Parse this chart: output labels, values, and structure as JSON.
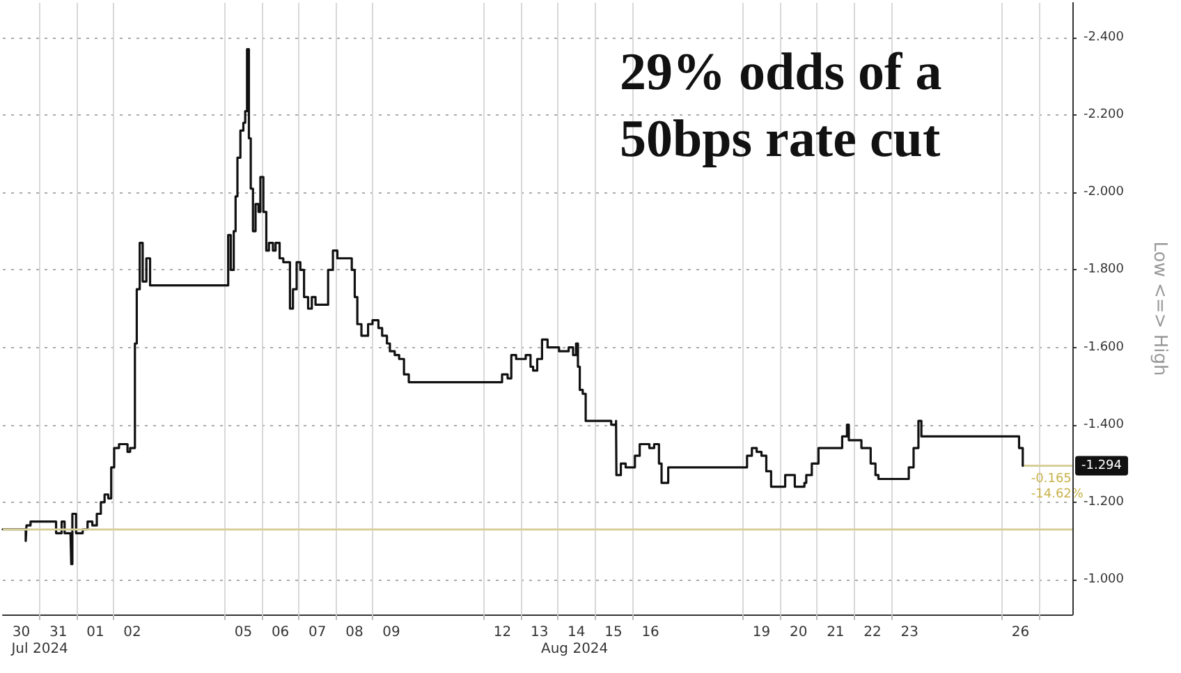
{
  "chart_data": {
    "type": "step",
    "title": "29% odds of a 50bps rate cut",
    "ylabel": "Low <=> High",
    "x": [
      "2024-07-30T00:00",
      "2024-07-30T14:10",
      "2024-07-30T14:53",
      "2024-07-30T15:22",
      "2024-07-30T18:00",
      "2024-07-31T08:10",
      "2024-07-31T10:34",
      "2024-07-31T14:10",
      "2024-07-31T16:05",
      "2024-07-31T19:55",
      "2024-07-31T20:24",
      "2024-07-31T21:07",
      "2024-07-31T23:31",
      "2024-08-01T03:50",
      "2024-08-01T06:58",
      "2024-08-01T10:05",
      "2024-08-01T12:58",
      "2024-08-01T15:36",
      "2024-08-01T18:00",
      "2024-08-01T20:24",
      "2024-08-01T22:19",
      "2024-08-02T00:14",
      "2024-08-02T03:22",
      "2024-08-02T06:14",
      "2024-08-02T08:53",
      "2024-08-02T10:34",
      "2024-08-02T12:29",
      "2024-08-02T13:41",
      "2024-08-02T14:53",
      "2024-08-02T16:48",
      "2024-08-02T18:43",
      "2024-08-02T21:07",
      "2024-08-02T23:31",
      "2024-08-05T02:10",
      "2024-08-05T03:50",
      "2024-08-05T05:46",
      "2024-08-05T06:58",
      "2024-08-05T08:10",
      "2024-08-05T10:05",
      "2024-08-05T12:00",
      "2024-08-05T13:12",
      "2024-08-05T14:24",
      "2024-08-05T15:36",
      "2024-08-05T16:48",
      "2024-08-05T18:14",
      "2024-08-05T19:55",
      "2024-08-05T21:50",
      "2024-08-05T23:02",
      "2024-08-06T00:58",
      "2024-08-06T02:53",
      "2024-08-06T04:34",
      "2024-08-06T07:12",
      "2024-08-06T08:53",
      "2024-08-06T11:31",
      "2024-08-06T13:55",
      "2024-08-06T16:19",
      "2024-08-06T18:14",
      "2024-08-06T20:10",
      "2024-08-06T22:34",
      "2024-08-07T00:58",
      "2024-08-07T03:22",
      "2024-08-07T06:00",
      "2024-08-07T08:24",
      "2024-08-07T10:48",
      "2024-08-07T14:38",
      "2024-08-07T17:02",
      "2024-08-07T18:58",
      "2024-08-07T22:05",
      "2024-08-08T00:58",
      "2024-08-08T04:05",
      "2024-08-08T07:12",
      "2024-08-08T10:19",
      "2024-08-08T12:14",
      "2024-08-08T13:55",
      "2024-08-08T16:34",
      "2024-08-08T18:58",
      "2024-08-08T20:53",
      "2024-08-08T23:46",
      "2024-08-09T03:36",
      "2024-08-09T06:00",
      "2024-08-09T09:07",
      "2024-08-09T11:02",
      "2024-08-09T14:10",
      "2024-08-09T17:02",
      "2024-08-09T20:10",
      "2024-08-09T23:17",
      "2024-08-12T05:31",
      "2024-08-12T11:46",
      "2024-08-12T15:22",
      "2024-08-12T17:46",
      "2024-08-12T20:53",
      "2024-08-13T00:00",
      "2024-08-13T03:07",
      "2024-08-13T06:14",
      "2024-08-13T07:55",
      "2024-08-13T10:34",
      "2024-08-13T13:41",
      "2024-08-13T17:17",
      "2024-08-13T18:29",
      "2024-08-14T00:43",
      "2024-08-14T06:58",
      "2024-08-14T09:50",
      "2024-08-14T11:46",
      "2024-08-14T12:58",
      "2024-08-14T14:10",
      "2024-08-14T16:05",
      "2024-08-14T18:00",
      "2024-08-14T22:19",
      "2024-08-15T07:26",
      "2024-08-15T10:34",
      "2024-08-15T13:41",
      "2024-08-15T13:55",
      "2024-08-15T16:48",
      "2024-08-15T19:55",
      "2024-08-16T01:55",
      "2024-08-16T05:02",
      "2024-08-16T11:17",
      "2024-08-16T14:24",
      "2024-08-16T17:31",
      "2024-08-16T19:12",
      "2024-08-16T23:31",
      "2024-08-19T02:38",
      "2024-08-19T05:46",
      "2024-08-19T08:53",
      "2024-08-19T12:00",
      "2024-08-19T15:07",
      "2024-08-19T18:14",
      "2024-08-20T00:14",
      "2024-08-20T03:22",
      "2024-08-20T06:29",
      "2024-08-20T09:36",
      "2024-08-20T15:50",
      "2024-08-20T17:02",
      "2024-08-20T20:38",
      "2024-08-21T00:58",
      "2024-08-21T07:12",
      "2024-08-21T13:26",
      "2024-08-21T16:19",
      "2024-08-21T19:26",
      "2024-08-21T20:38",
      "2024-08-22T00:29",
      "2024-08-22T04:48",
      "2024-08-22T10:48",
      "2024-08-22T13:55",
      "2024-08-22T15:50",
      "2024-08-22T23:17",
      "2024-08-23T08:24",
      "2024-08-23T11:31",
      "2024-08-23T14:38",
      "2024-08-23T17:46",
      "2024-08-23T19:41",
      "2024-08-26T00:00",
      "2024-08-26T09:07",
      "2024-08-26T11:02",
      "2024-08-26T13:26"
    ],
    "series": [
      {
        "color": "#111111",
        "values": [
          -1.13,
          -1.13,
          -1.1,
          -1.14,
          -1.15,
          -1.15,
          -1.12,
          -1.15,
          -1.12,
          -1.12,
          -1.04,
          -1.17,
          -1.12,
          -1.13,
          -1.15,
          -1.14,
          -1.17,
          -1.2,
          -1.22,
          -1.21,
          -1.29,
          -1.34,
          -1.35,
          -1.35,
          -1.33,
          -1.34,
          -1.34,
          -1.61,
          -1.75,
          -1.87,
          -1.77,
          -1.83,
          -1.76,
          -1.89,
          -1.8,
          -1.9,
          -1.99,
          -2.09,
          -2.16,
          -2.18,
          -2.21,
          -2.37,
          -2.14,
          -2.01,
          -1.9,
          -1.97,
          -1.95,
          -2.04,
          -1.95,
          -1.85,
          -1.87,
          -1.85,
          -1.87,
          -1.83,
          -1.82,
          -1.82,
          -1.7,
          -1.75,
          -1.82,
          -1.8,
          -1.73,
          -1.7,
          -1.73,
          -1.71,
          -1.71,
          -1.71,
          -1.8,
          -1.85,
          -1.83,
          -1.83,
          -1.83,
          -1.8,
          -1.73,
          -1.66,
          -1.63,
          -1.63,
          -1.66,
          -1.67,
          -1.65,
          -1.63,
          -1.61,
          -1.59,
          -1.58,
          -1.57,
          -1.53,
          -1.51,
          -1.51,
          -1.53,
          -1.52,
          -1.58,
          -1.57,
          -1.57,
          -1.58,
          -1.55,
          -1.54,
          -1.57,
          -1.62,
          -1.6,
          -1.6,
          -1.59,
          -1.6,
          -1.58,
          -1.61,
          -1.55,
          -1.49,
          -1.48,
          -1.41,
          -1.41,
          -1.41,
          -1.4,
          -1.41,
          -1.27,
          -1.3,
          -1.29,
          -1.32,
          -1.35,
          -1.34,
          -1.35,
          -1.3,
          -1.25,
          -1.29,
          -1.32,
          -1.34,
          -1.33,
          -1.32,
          -1.28,
          -1.24,
          -1.24,
          -1.27,
          -1.27,
          -1.24,
          -1.25,
          -1.27,
          -1.3,
          -1.34,
          -1.34,
          -1.34,
          -1.37,
          -1.4,
          -1.36,
          -1.36,
          -1.34,
          -1.3,
          -1.27,
          -1.26,
          -1.26,
          -1.26,
          -1.29,
          -1.34,
          -1.41,
          -1.37,
          -1.37,
          -1.37,
          -1.34,
          -1.294
        ]
      }
    ],
    "xlim": [
      "2024-07-30T00:00",
      "2024-08-27T21:36"
    ],
    "xticks": [
      {
        "value": "2024-07-30T12:00",
        "label": "30"
      },
      {
        "value": "2024-07-31T00:00",
        "label": null
      },
      {
        "value": "2024-07-31T12:00",
        "label": "31"
      },
      {
        "value": "2024-08-01T00:00",
        "label": null
      },
      {
        "value": "2024-08-01T12:00",
        "label": "01"
      },
      {
        "value": "2024-08-02T00:00",
        "label": null
      },
      {
        "value": "2024-08-02T12:00",
        "label": "02"
      },
      {
        "value": "2024-08-05T00:00",
        "label": null
      },
      {
        "value": "2024-08-05T12:00",
        "label": "05"
      },
      {
        "value": "2024-08-06T00:00",
        "label": null
      },
      {
        "value": "2024-08-06T12:00",
        "label": "06"
      },
      {
        "value": "2024-08-07T00:00",
        "label": null
      },
      {
        "value": "2024-08-07T12:00",
        "label": "07"
      },
      {
        "value": "2024-08-08T00:00",
        "label": null
      },
      {
        "value": "2024-08-08T12:00",
        "label": "08"
      },
      {
        "value": "2024-08-09T00:00",
        "label": null
      },
      {
        "value": "2024-08-09T12:00",
        "label": "09"
      },
      {
        "value": "2024-08-12T00:00",
        "label": null
      },
      {
        "value": "2024-08-12T12:00",
        "label": "12"
      },
      {
        "value": "2024-08-13T00:00",
        "label": null
      },
      {
        "value": "2024-08-13T12:00",
        "label": "13"
      },
      {
        "value": "2024-08-14T00:00",
        "label": null
      },
      {
        "value": "2024-08-14T12:00",
        "label": "14"
      },
      {
        "value": "2024-08-15T00:00",
        "label": null
      },
      {
        "value": "2024-08-15T12:00",
        "label": "15"
      },
      {
        "value": "2024-08-16T00:00",
        "label": null
      },
      {
        "value": "2024-08-16T12:00",
        "label": "16"
      },
      {
        "value": "2024-08-19T00:00",
        "label": null
      },
      {
        "value": "2024-08-19T12:00",
        "label": "19"
      },
      {
        "value": "2024-08-20T00:00",
        "label": null
      },
      {
        "value": "2024-08-20T12:00",
        "label": "20"
      },
      {
        "value": "2024-08-21T00:00",
        "label": null
      },
      {
        "value": "2024-08-21T12:00",
        "label": "21"
      },
      {
        "value": "2024-08-22T00:00",
        "label": null
      },
      {
        "value": "2024-08-22T12:00",
        "label": "22"
      },
      {
        "value": "2024-08-23T00:00",
        "label": null
      },
      {
        "value": "2024-08-23T12:00",
        "label": "23"
      },
      {
        "value": "2024-08-26T00:00",
        "label": null
      },
      {
        "value": "2024-08-26T12:00",
        "label": "26"
      },
      {
        "value": "2024-08-27T00:00",
        "label": null
      }
    ],
    "ylim": [
      -0.91,
      -2.49
    ],
    "yticks": [
      {
        "value": -1,
        "label": "-1.000"
      },
      {
        "value": -1.2,
        "label": "-1.200"
      },
      {
        "value": -1.4,
        "label": "-1.400"
      },
      {
        "value": -1.6,
        "label": "-1.600"
      },
      {
        "value": -1.8,
        "label": "-1.800"
      },
      {
        "value": -2,
        "label": "-2.000"
      },
      {
        "value": -2.2,
        "label": "-2.200"
      },
      {
        "value": -2.4,
        "label": "-2.400"
      }
    ],
    "ref_lines": [
      {
        "axis": "y",
        "value": -1.129,
        "color": "#d8cf98"
      }
    ],
    "annotations": [
      {
        "text": "-1.294",
        "x": "2024-08-26T13:26",
        "y": -1.294
      },
      "-0.165",
      "-14.62%",
      "Jul 2024",
      "Aug 2024"
    ],
    "grid": true,
    "marker": "none",
    "line_style": "solid"
  }
}
